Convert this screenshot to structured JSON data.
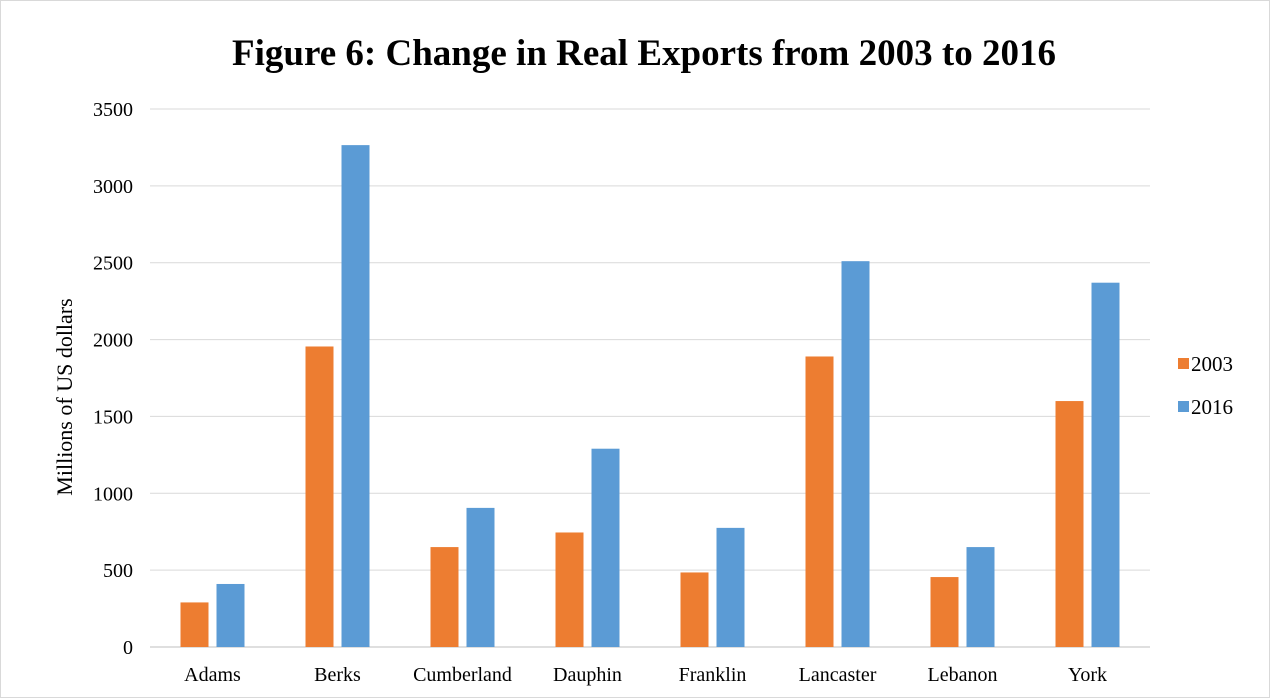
{
  "chart_data": {
    "type": "bar",
    "title": "Figure 6: Change in Real Exports from 2003 to 2016",
    "xlabel": "",
    "ylabel": "Millions of US dollars",
    "categories": [
      "Adams",
      "Berks",
      "Cumberland",
      "Dauphin",
      "Franklin",
      "Lancaster",
      "Lebanon",
      "York"
    ],
    "series": [
      {
        "name": "2003",
        "color": "#ED7D31",
        "values": [
          290,
          1955,
          650,
          745,
          485,
          1890,
          455,
          1600
        ]
      },
      {
        "name": "2016",
        "color": "#5B9BD5",
        "values": [
          410,
          3265,
          905,
          1290,
          775,
          2510,
          650,
          2370
        ]
      }
    ],
    "ylim": [
      0,
      3500
    ],
    "yticks": [
      "0",
      "500",
      "1000",
      "1500",
      "2000",
      "2500",
      "3000",
      "3500"
    ],
    "grid": true,
    "legend_position": "right"
  }
}
